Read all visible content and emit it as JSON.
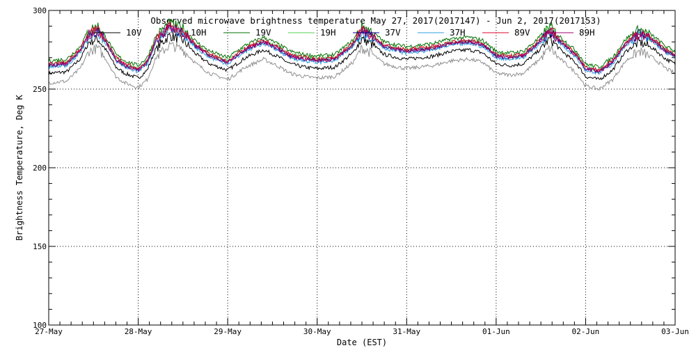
{
  "chart_data": {
    "type": "line",
    "title": "Observed microwave brightness temperature May 27, 2017(2017147) - Jun  2, 2017(2017153)",
    "xlabel": "Date (EST)",
    "ylabel": "Brightness Temperature, Deg K",
    "xlim": [
      0,
      7
    ],
    "ylim": [
      100,
      300
    ],
    "grid": true,
    "legend_position": "top",
    "x_ticks": [
      {
        "x": 0,
        "label": "27-May"
      },
      {
        "x": 1,
        "label": "28-May"
      },
      {
        "x": 2,
        "label": "29-May"
      },
      {
        "x": 3,
        "label": "30-May"
      },
      {
        "x": 4,
        "label": "31-May"
      },
      {
        "x": 5,
        "label": "01-Jun"
      },
      {
        "x": 6,
        "label": "02-Jun"
      },
      {
        "x": 7,
        "label": "03-Jun"
      }
    ],
    "y_ticks": [
      100,
      150,
      200,
      250,
      300
    ],
    "base_profile": {
      "x": [
        0,
        0.2,
        0.35,
        0.45,
        0.55,
        0.65,
        0.75,
        0.85,
        1.0,
        1.1,
        1.2,
        1.35,
        1.5,
        1.65,
        1.8,
        2.0,
        2.2,
        2.4,
        2.55,
        2.7,
        2.85,
        3.0,
        3.2,
        3.4,
        3.5,
        3.6,
        3.75,
        3.9,
        4.0,
        4.15,
        4.3,
        4.5,
        4.7,
        4.85,
        5.0,
        5.15,
        5.3,
        5.45,
        5.6,
        5.7,
        5.8,
        5.9,
        6.0,
        6.15,
        6.3,
        6.45,
        6.6,
        6.75,
        6.9,
        7.0
      ],
      "y": [
        266,
        267,
        275,
        286,
        288,
        280,
        270,
        266,
        263,
        268,
        282,
        290,
        287,
        278,
        272,
        268,
        276,
        281,
        277,
        272,
        270,
        269,
        270,
        279,
        288,
        285,
        278,
        276,
        275,
        276,
        277,
        280,
        281,
        279,
        272,
        271,
        272,
        279,
        288,
        282,
        277,
        272,
        264,
        262,
        268,
        280,
        286,
        282,
        275,
        272
      ]
    },
    "series": [
      {
        "name": "10V",
        "color": "#000000",
        "offset": -6
      },
      {
        "name": "10H",
        "color": "#909090",
        "offset": -12
      },
      {
        "name": "19V",
        "color": "#007000",
        "offset": 2
      },
      {
        "name": "19H",
        "color": "#55d055",
        "offset": 0
      },
      {
        "name": "37V",
        "color": "#000090",
        "offset": -1
      },
      {
        "name": "37H",
        "color": "#2f9fe0",
        "offset": -2
      },
      {
        "name": "89V",
        "color": "#e0002a",
        "offset": 0
      },
      {
        "name": "89H",
        "color": "#a0006a",
        "offset": -1
      }
    ]
  }
}
